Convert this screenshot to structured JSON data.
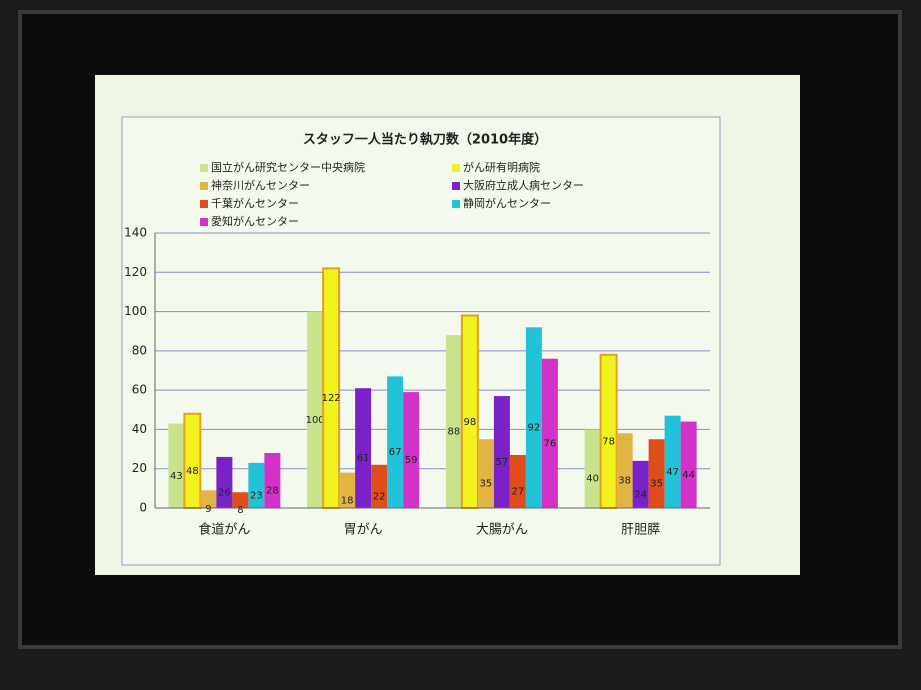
{
  "chart_data": {
    "type": "bar",
    "title": "スタッフ一人当たり執刀数（2010年度）",
    "categories": [
      "食道がん",
      "胃がん",
      "大腸がん",
      "肝胆膵"
    ],
    "series": [
      {
        "name": "国立がん研究センター中央病院",
        "color": "#c9e28c",
        "values": [
          43,
          100,
          88,
          40
        ]
      },
      {
        "name": "がん研有明病院",
        "color": "#f2f21e",
        "values": [
          48,
          122,
          98,
          78
        ]
      },
      {
        "name": "神奈川がんセンター",
        "color": "#e2b444",
        "values": [
          9,
          18,
          35,
          38
        ]
      },
      {
        "name": "大阪府立成人病センター",
        "color": "#7a22c8",
        "values": [
          26,
          61,
          57,
          24
        ]
      },
      {
        "name": "千葉がんセンター",
        "color": "#e04c1a",
        "values": [
          8,
          22,
          27,
          35
        ]
      },
      {
        "name": "静岡がんセンター",
        "color": "#22c2d8",
        "values": [
          23,
          67,
          92,
          47
        ]
      },
      {
        "name": "愛知がんセンター",
        "color": "#d232c8",
        "values": [
          28,
          59,
          76,
          44
        ]
      }
    ],
    "ylim": [
      0,
      140
    ],
    "yticks": [
      0,
      20,
      40,
      60,
      80,
      100,
      120,
      140
    ],
    "grid": true
  }
}
